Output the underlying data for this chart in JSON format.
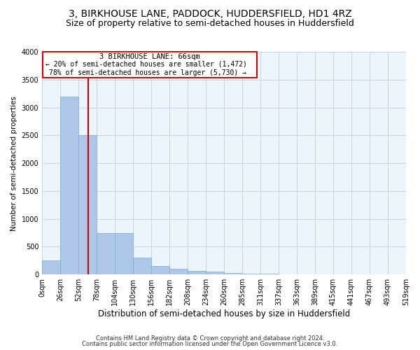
{
  "title1": "3, BIRKHOUSE LANE, PADDOCK, HUDDERSFIELD, HD1 4RZ",
  "title2": "Size of property relative to semi-detached houses in Huddersfield",
  "xlabel": "Distribution of semi-detached houses by size in Huddersfield",
  "ylabel": "Number of semi-detached properties",
  "footer1": "Contains HM Land Registry data © Crown copyright and database right 2024.",
  "footer2": "Contains public sector information licensed under the Open Government Licence v3.0.",
  "bar_values": [
    250,
    3200,
    2500,
    750,
    750,
    300,
    150,
    100,
    60,
    50,
    30,
    20,
    10,
    5,
    3,
    2,
    1,
    0,
    0,
    0
  ],
  "bin_labels": [
    "0sqm",
    "26sqm",
    "52sqm",
    "78sqm",
    "104sqm",
    "130sqm",
    "156sqm",
    "182sqm",
    "208sqm",
    "234sqm",
    "260sqm",
    "285sqm",
    "311sqm",
    "337sqm",
    "363sqm",
    "389sqm",
    "415sqm",
    "441sqm",
    "467sqm",
    "493sqm",
    "519sqm"
  ],
  "bar_color": "#aec6e8",
  "bar_edge_color": "#7aafd4",
  "grid_color": "#c8d8e8",
  "background_color": "#eef4fb",
  "annotation_box_color": "#ffffff",
  "annotation_border_color": "#cc0000",
  "property_line_color": "#cc0000",
  "property_line_x": 2.54,
  "annotation_text1": "3 BIRKHOUSE LANE: 66sqm",
  "annotation_text2": "← 20% of semi-detached houses are smaller (1,472)",
  "annotation_text3": "78% of semi-detached houses are larger (5,730) →",
  "ylim": [
    0,
    4000
  ],
  "yticks": [
    0,
    500,
    1000,
    1500,
    2000,
    2500,
    3000,
    3500,
    4000
  ],
  "title1_fontsize": 10,
  "title2_fontsize": 9,
  "xlabel_fontsize": 8.5,
  "ylabel_fontsize": 7.5,
  "tick_fontsize": 7,
  "annotation_fontsize": 7.5,
  "footer_fontsize": 6
}
